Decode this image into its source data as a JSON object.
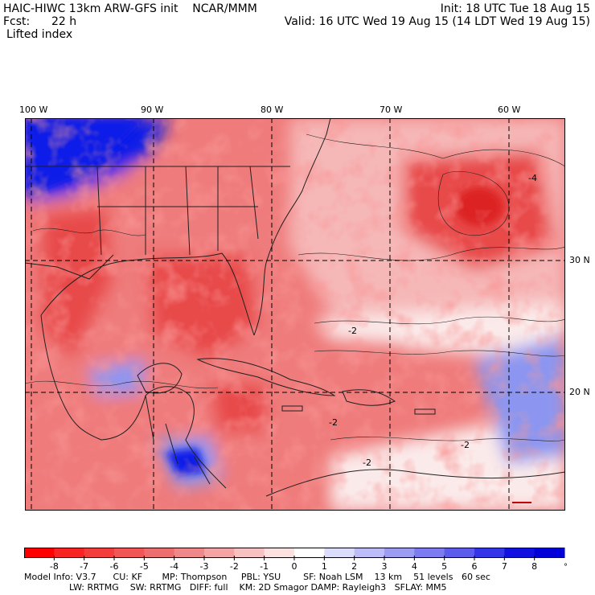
{
  "header": {
    "model_line": "HAIC-HIWC 13km ARW-GFS init    NCAR/MMM",
    "init_line": "Init: 18 UTC Tue 18 Aug 15",
    "fcst_label": "Fcst:",
    "fcst_value": "22 h",
    "valid_line": "Valid: 16 UTC Wed 19 Aug 15 (14 LDT Wed 19 Aug 15)",
    "field_name": "Lifted index"
  },
  "map": {
    "longitude_labels": [
      "100 W",
      "90 W",
      "80 W",
      "70 W",
      "60 W"
    ],
    "latitude_labels": [
      "30 N",
      "20 N"
    ],
    "contour_labels": [
      "-4",
      "-2",
      "-2",
      "-2",
      "-2"
    ],
    "colors": {
      "strong_stable": "#0a1ee8",
      "moderate_stable": "#8c96f0",
      "neutral": "#fbeaea",
      "mild_unstable": "#f6b7b7",
      "unstable": "#ef7b7b",
      "very_unstable": "#e84848",
      "extreme_unstable": "#dc2020",
      "coastline": "#202020",
      "grid": "#000000"
    }
  },
  "colorbar": {
    "unit": "°C",
    "labels": [
      "-8",
      "-7",
      "-6",
      "-5",
      "-4",
      "-3",
      "-2",
      "-1",
      "0",
      "1",
      "2",
      "3",
      "4",
      "5",
      "6",
      "7",
      "8"
    ],
    "colors": [
      "#ff0000",
      "#f82424",
      "#f43c3c",
      "#f05656",
      "#ed6e6e",
      "#ef8888",
      "#f4a4a4",
      "#f8c2c2",
      "#fde0e0",
      "#ffffff",
      "#dcdcfc",
      "#bcbcf8",
      "#9c9cf4",
      "#7c7cf0",
      "#5c5cec",
      "#3434e8",
      "#1010e0",
      "#0000d8"
    ]
  },
  "model_info": {
    "line1": "Model Info: V3.7      CU: KF       MP: Thompson     PBL: YSU        SF: Noah LSM    13 km    51 levels   60 sec",
    "line2": "                LW: RRTMG    SW: RRTMG   DIFF: full    KM: 2D Smagor DAMP: Rayleigh3   SFLAY: MM5"
  }
}
